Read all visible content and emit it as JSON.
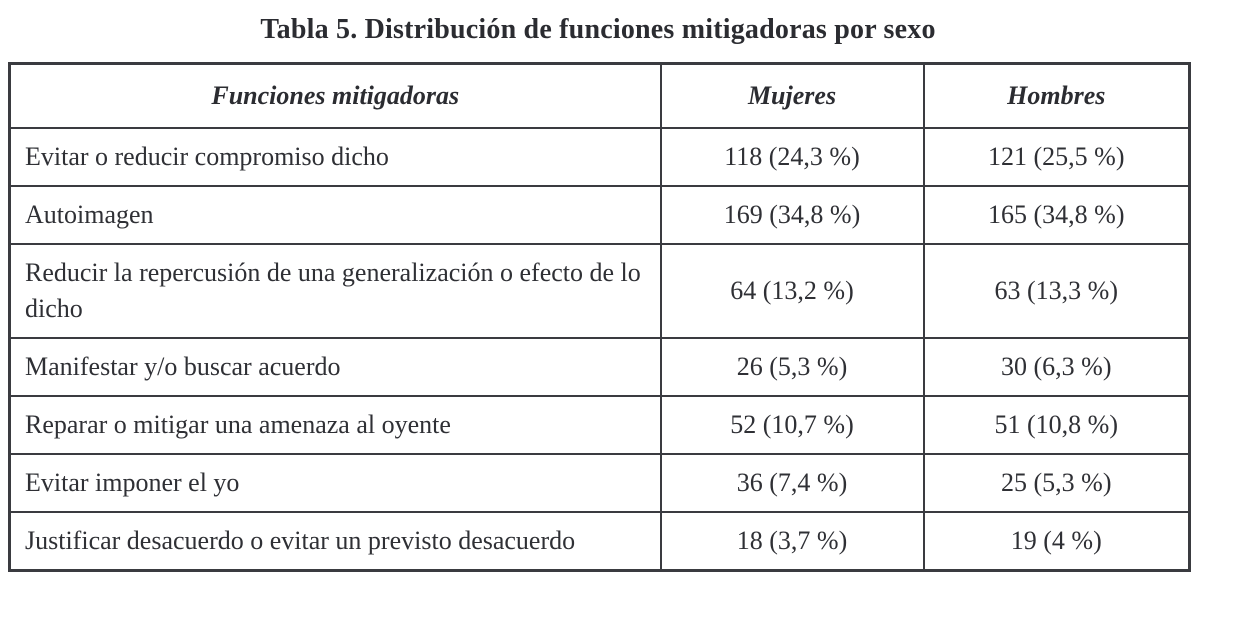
{
  "title": "Tabla 5. Distribución de funciones mitigadoras por sexo",
  "table": {
    "headers": {
      "funcion": "Funciones mitigadoras",
      "mujeres": "Mujeres",
      "hombres": "Hombres"
    },
    "rows": [
      {
        "funcion": "Evitar o reducir compromiso dicho",
        "mujeres": "118 (24,3 %)",
        "hombres": "121 (25,5 %)"
      },
      {
        "funcion": "Autoimagen",
        "mujeres": "169 (34,8 %)",
        "hombres": "165 (34,8 %)"
      },
      {
        "funcion": "Reducir la repercusión de una generalización o efecto de lo dicho",
        "mujeres": "64 (13,2 %)",
        "hombres": "63 (13,3 %)"
      },
      {
        "funcion": "Manifestar y/o buscar acuerdo",
        "mujeres": "26 (5,3 %)",
        "hombres": "30 (6,3 %)"
      },
      {
        "funcion": "Reparar o mitigar una amenaza al oyente",
        "mujeres": "52 (10,7 %)",
        "hombres": "51 (10,8 %)"
      },
      {
        "funcion": "Evitar imponer el yo",
        "mujeres": "36 (7,4 %)",
        "hombres": "25 (5,3 %)"
      },
      {
        "funcion": "Justificar desacuerdo o evitar un previsto desacuerdo",
        "mujeres": "18 (3,7 %)",
        "hombres": "19 (4 %)"
      }
    ],
    "colors": {
      "text": "#2f3035",
      "border": "#3a3b40",
      "background": "#ffffff"
    }
  }
}
